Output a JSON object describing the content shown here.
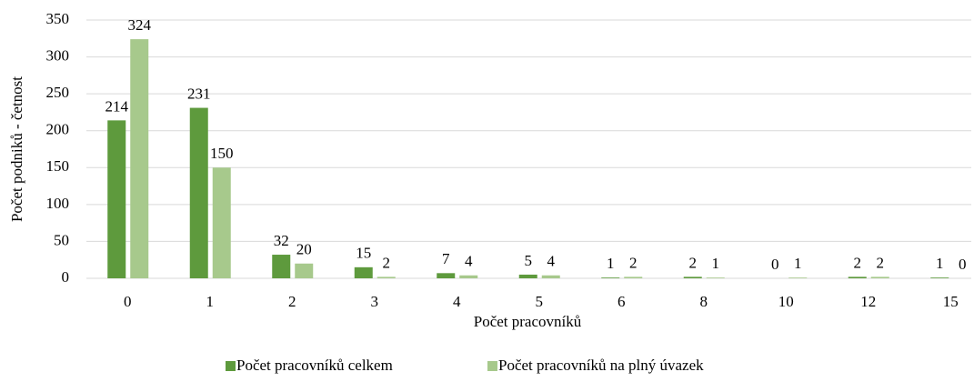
{
  "chart_data": {
    "type": "bar",
    "x_label": "Počet pracovníků",
    "y_label": "Počet podniků - četnost",
    "categories": [
      "0",
      "1",
      "2",
      "3",
      "4",
      "5",
      "6",
      "8",
      "10",
      "12",
      "15"
    ],
    "series": [
      {
        "name": "Počet pracovníků celkem",
        "color": "#5e9a3d",
        "values": [
          214,
          231,
          32,
          15,
          7,
          5,
          1,
          2,
          0,
          2,
          1
        ]
      },
      {
        "name": "Počet pracovníků na plný úvazek",
        "color": "#a7c98c",
        "values": [
          324,
          150,
          20,
          2,
          4,
          4,
          2,
          1,
          1,
          2,
          0
        ]
      }
    ],
    "ylim": [
      0,
      350
    ],
    "yticks": [
      0,
      50,
      100,
      150,
      200,
      250,
      300,
      350
    ],
    "grid": true,
    "legend": "bottom"
  }
}
